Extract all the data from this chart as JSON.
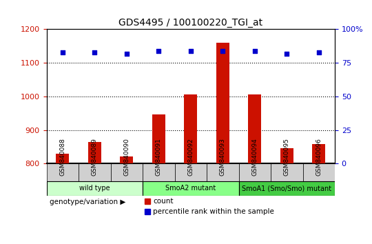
{
  "title": "GDS4495 / 100100220_TGI_at",
  "samples": [
    "GSM840088",
    "GSM840089",
    "GSM840090",
    "GSM840091",
    "GSM840092",
    "GSM840093",
    "GSM840094",
    "GSM840095",
    "GSM840096"
  ],
  "counts": [
    830,
    865,
    820,
    947,
    1005,
    1160,
    1005,
    845,
    858
  ],
  "percentiles": [
    83,
    83,
    82,
    84,
    84,
    84,
    84,
    82,
    83
  ],
  "groups": [
    {
      "label": "wild type",
      "start": 0,
      "end": 3,
      "color": "#ccffcc"
    },
    {
      "label": "SmoA2 mutant",
      "start": 3,
      "end": 6,
      "color": "#88ff88"
    },
    {
      "label": "SmoA1 (Smo/Smo) mutant",
      "start": 6,
      "end": 9,
      "color": "#44cc44"
    }
  ],
  "ylim_left": [
    800,
    1200
  ],
  "ylim_right": [
    0,
    100
  ],
  "yticks_left": [
    800,
    900,
    1000,
    1100,
    1200
  ],
  "yticks_right": [
    0,
    25,
    50,
    75,
    100
  ],
  "bar_color": "#cc1100",
  "dot_color": "#0000cc",
  "grid_color": "#000000",
  "left_axis_color": "#cc1100",
  "right_axis_color": "#0000cc",
  "legend_count_label": "count",
  "legend_pct_label": "percentile rank within the sample",
  "genotype_label": "genotype/variation"
}
